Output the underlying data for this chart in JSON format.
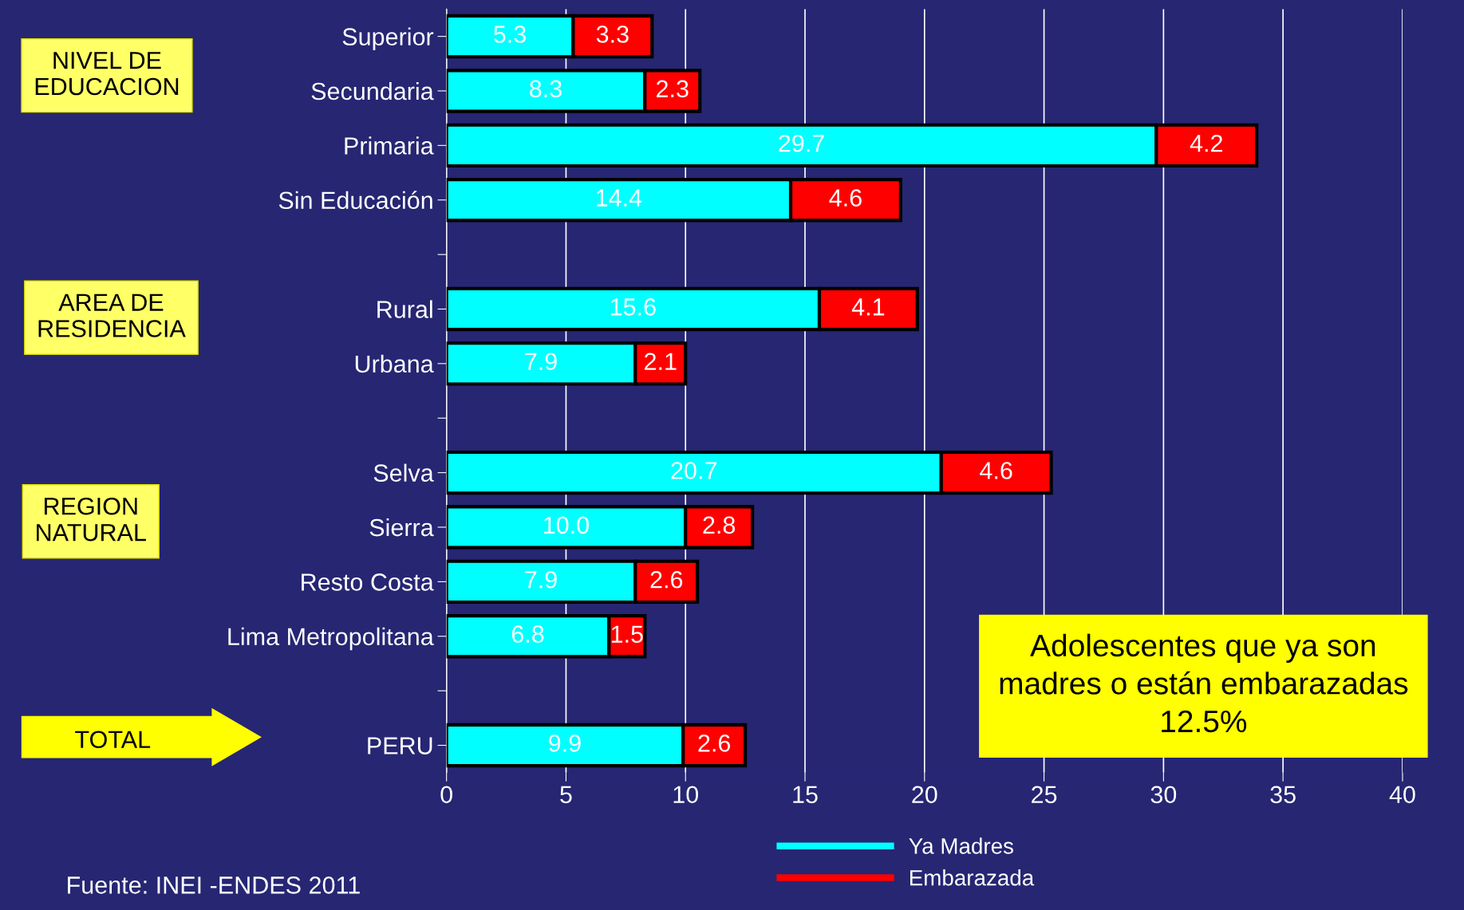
{
  "chart_data": {
    "type": "bar",
    "orientation": "horizontal",
    "stacked": true,
    "categories": [
      "Superior",
      "Secundaria",
      "Primaria",
      "Sin Educación",
      null,
      "Rural",
      "Urbana",
      null,
      "Selva",
      "Sierra",
      "Resto Costa",
      "Lima Metropolitana",
      null,
      "PERU"
    ],
    "series": [
      {
        "name": "Ya Madres",
        "color": "#00ffff",
        "values": [
          5.3,
          8.3,
          29.7,
          14.4,
          null,
          15.6,
          7.9,
          null,
          20.7,
          10.0,
          7.9,
          6.8,
          null,
          9.9
        ],
        "value_labels": [
          "5.3",
          "8.3",
          "29.7",
          "14.4",
          null,
          "15.6",
          "7.9",
          null,
          "20.7",
          "10.0",
          "7.9",
          "6.8",
          null,
          "9.9"
        ]
      },
      {
        "name": "Embarazada",
        "color": "#ff0000",
        "values": [
          3.3,
          2.3,
          4.2,
          4.6,
          null,
          4.1,
          2.1,
          null,
          4.6,
          2.8,
          2.6,
          1.5,
          null,
          2.6
        ],
        "value_labels": [
          "3.3",
          "2.3",
          "4.2",
          "4.6",
          null,
          "4.1",
          "2.1",
          null,
          "4.6",
          "2.8",
          "2.6",
          "1.5",
          null,
          "2.6"
        ]
      }
    ],
    "xlim": [
      0,
      40
    ],
    "xticks": [
      0,
      5,
      10,
      15,
      20,
      25,
      30,
      35,
      40
    ],
    "grid": "x",
    "legend": "bottom right",
    "annotations": [
      "NIVEL DE\nEDUCACION",
      "AREA DE\nRESIDENCIA",
      "REGION\nNATURAL",
      "TOTAL",
      "Adolescentes que ya son\nmadres o están embarazadas\n12.5%",
      "Fuente: INEI -ENDES 2011"
    ]
  }
}
